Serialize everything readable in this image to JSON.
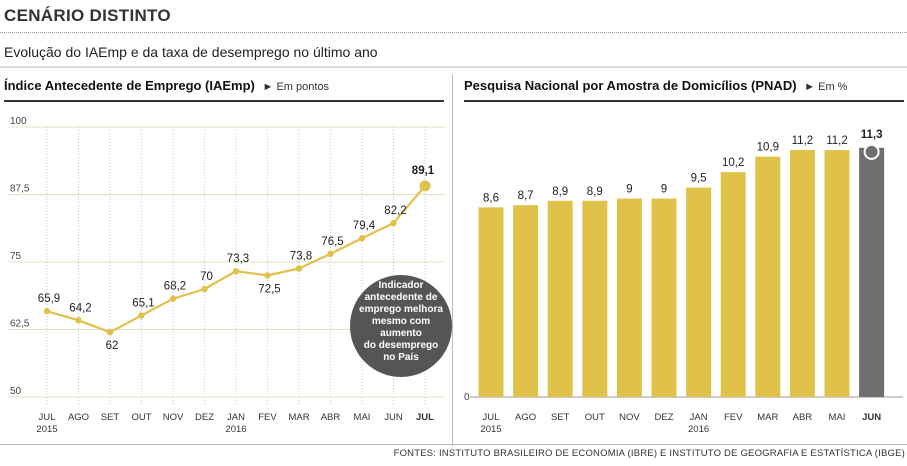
{
  "header": {
    "title": "CENÁRIO DISTINTO",
    "subtitle": "Evolução do IAEmp e da taxa de desemprego no último ano"
  },
  "colors": {
    "accent": "#e0c24a",
    "highlight": "#6f6f6f",
    "annotation_bg": "#555555"
  },
  "chart_data": [
    {
      "type": "line",
      "title": "Índice Antecedente de Emprego (IAEmp)",
      "unit": "► Em pontos",
      "categories": [
        "JUL",
        "AGO",
        "SET",
        "OUT",
        "NOV",
        "DEZ",
        "JAN",
        "FEV",
        "MAR",
        "ABR",
        "MAI",
        "JUN",
        "JUL"
      ],
      "category_years": [
        "2015",
        "",
        "",
        "",
        "",
        "",
        "2016",
        "",
        "",
        "",
        "",
        "",
        ""
      ],
      "values": [
        65.9,
        64.2,
        62,
        65.1,
        68.2,
        70,
        73.3,
        72.5,
        73.8,
        76.5,
        79.4,
        82.2,
        89.1
      ],
      "value_labels": [
        "65,9",
        "64,2",
        "62",
        "65,1",
        "68,2",
        "70",
        "73,3",
        "72,5",
        "73,8",
        "76,5",
        "79,4",
        "82,2",
        "89,1"
      ],
      "ylim": [
        50,
        100
      ],
      "yticks": [
        "100",
        "87,5",
        "75",
        "62,5",
        "50"
      ],
      "grid": true,
      "annotation": "Indicador antecedente de emprego melhora mesmo com aumento do desemprego no País"
    },
    {
      "type": "bar",
      "title": "Pesquisa Nacional por Amostra de Domicílios (PNAD)",
      "unit": "► Em %",
      "categories": [
        "JUL",
        "AGO",
        "SET",
        "OUT",
        "NOV",
        "DEZ",
        "JAN",
        "FEV",
        "MAR",
        "ABR",
        "MAI",
        "JUN"
      ],
      "category_years": [
        "2015",
        "",
        "",
        "",
        "",
        "",
        "2016",
        "",
        "",
        "",
        "",
        ""
      ],
      "values": [
        8.6,
        8.7,
        8.9,
        8.9,
        9,
        9,
        9.5,
        10.2,
        10.9,
        11.2,
        11.2,
        11.3
      ],
      "value_labels": [
        "8,6",
        "8,7",
        "8,9",
        "8,9",
        "9",
        "9",
        "9,5",
        "10,2",
        "10,9",
        "11,2",
        "11,2",
        "11,3"
      ],
      "ylim": [
        0,
        12.2
      ],
      "yticks": [
        "0"
      ],
      "highlight_last": true
    }
  ],
  "footer": "FONTES: INSTITUTO BRASILEIRO DE ECONOMIA (IBRE) E INSTITUTO DE GEOGRAFIA E ESTATÍSTICA (IBGE)"
}
